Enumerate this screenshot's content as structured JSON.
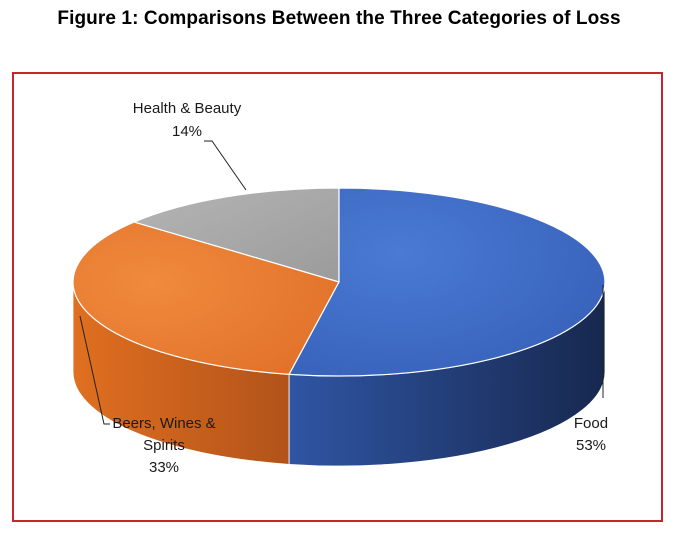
{
  "figure": {
    "title": "Figure 1: Comparisons Between the Three Categories of Loss",
    "border_color": "#c8242b"
  },
  "chart_data": {
    "type": "pie",
    "style": "3d",
    "title": "Figure 1: Comparisons Between the Three Categories of Loss",
    "slices": [
      {
        "label": "Food",
        "value": 53,
        "percent_label": "53%",
        "color": "#3e6cc4"
      },
      {
        "label": "Beers, Wines & Spirits",
        "label_lines": [
          "Beers, Wines &",
          "Spirits"
        ],
        "value": 33,
        "percent_label": "33%",
        "color": "#e5782b"
      },
      {
        "label": "Health & Beauty",
        "value": 14,
        "percent_label": "14%",
        "color": "#a9a9a9"
      }
    ],
    "legend": "none",
    "data_labels": "outside-with-leader-lines"
  }
}
